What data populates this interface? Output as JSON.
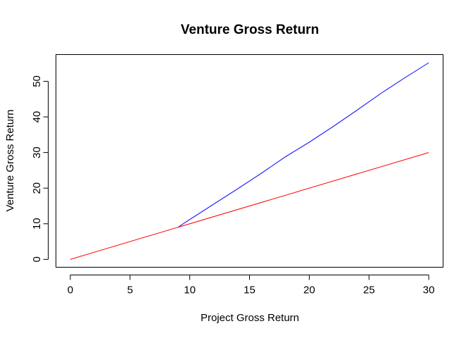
{
  "chart_data": {
    "type": "line",
    "title": "Venture Gross Return",
    "xlabel": "Project Gross Return",
    "ylabel": "Venture Gross Return",
    "xlim": [
      -1.2,
      31.2
    ],
    "ylim": [
      -2.2,
      57.5
    ],
    "x_ticks": [
      0,
      5,
      10,
      15,
      20,
      25,
      30
    ],
    "y_ticks": [
      0,
      10,
      20,
      30,
      40,
      50
    ],
    "grid": false,
    "legend": "none",
    "series": [
      {
        "color": "#0000FF",
        "x": [
          9,
          10,
          12,
          14,
          16,
          18,
          20,
          22,
          24,
          26,
          28,
          30
        ],
        "y": [
          9,
          11.2,
          15.5,
          19.8,
          24.2,
          28.8,
          32.9,
          37.3,
          41.9,
          46.6,
          51.0,
          55.2
        ]
      },
      {
        "color": "#FF0000",
        "x": [
          0,
          30
        ],
        "y": [
          0,
          30
        ]
      }
    ]
  }
}
